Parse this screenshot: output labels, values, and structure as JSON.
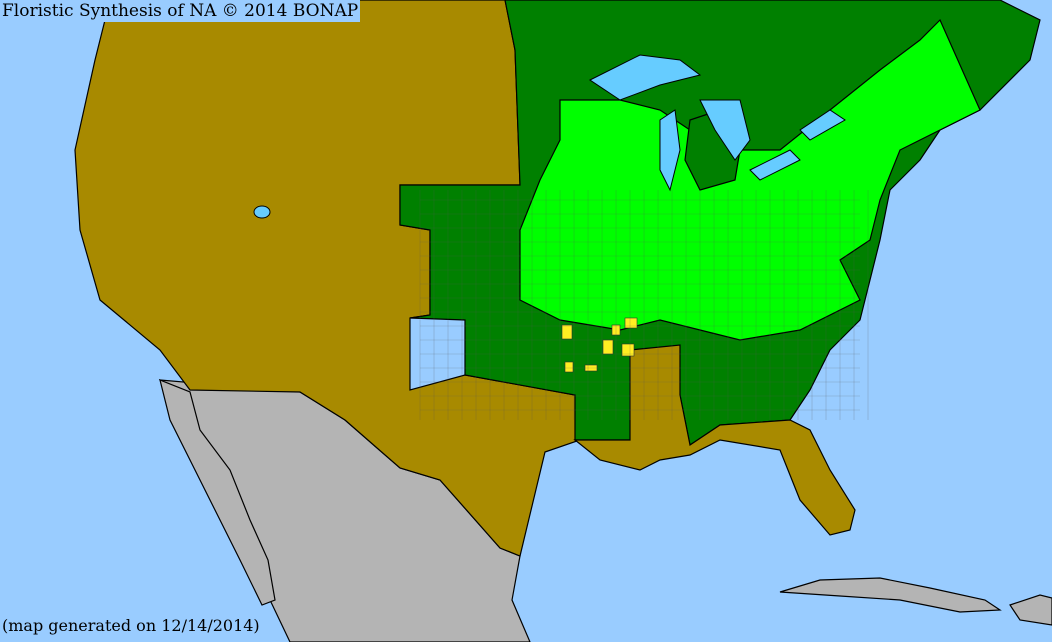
{
  "map": {
    "title": "Floristic Synthesis of NA © 2014 BONAP",
    "footer": "(map generated on 12/14/2014)",
    "colors": {
      "ocean": "#99ccff",
      "lakes": "#66ccff",
      "absent_state": "#a88a00",
      "present_state": "#008000",
      "present_county": "#00ff00",
      "county_rare": "#ffee22",
      "outside_range": "#b4b4b4"
    }
  }
}
